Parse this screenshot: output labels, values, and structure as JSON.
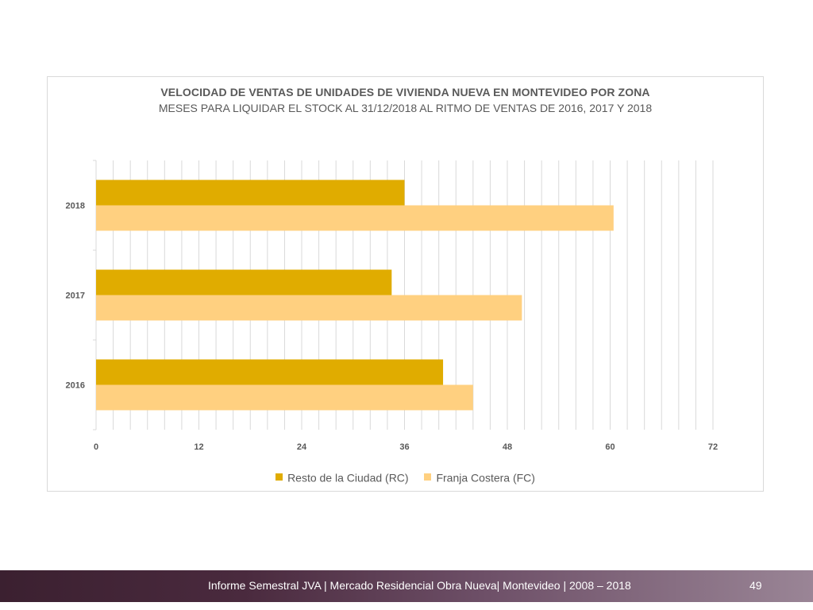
{
  "chart_data": {
    "type": "bar",
    "orientation": "horizontal",
    "title": "VELOCIDAD DE VENTAS DE UNIDADES DE VIVIENDA NUEVA EN MONTEVIDEO POR ZONA",
    "subtitle": "MESES PARA LIQUIDAR EL STOCK AL 31/12/2018 AL RITMO DE VENTAS DE 2016, 2017 Y 2018",
    "categories": [
      "2016",
      "2017",
      "2018"
    ],
    "series": [
      {
        "name": "Resto de la Ciudad (RC)",
        "color": "#e0ac00",
        "values": [
          40.5,
          34.5,
          36
        ]
      },
      {
        "name": "Franja Costera (FC)",
        "color": "#ffd080",
        "values": [
          44,
          49.7,
          60.4
        ]
      }
    ],
    "xlim": [
      0,
      72
    ],
    "xticks": [
      "0",
      "12",
      "24",
      "36",
      "48",
      "60",
      "72"
    ],
    "gridline_step": 2,
    "grid": true,
    "legend_position": "bottom"
  },
  "footer": {
    "text": "Informe Semestral JVA | Mercado Residencial Obra Nueva| Montevideo | 2008 – 2018",
    "page_number": "49"
  }
}
